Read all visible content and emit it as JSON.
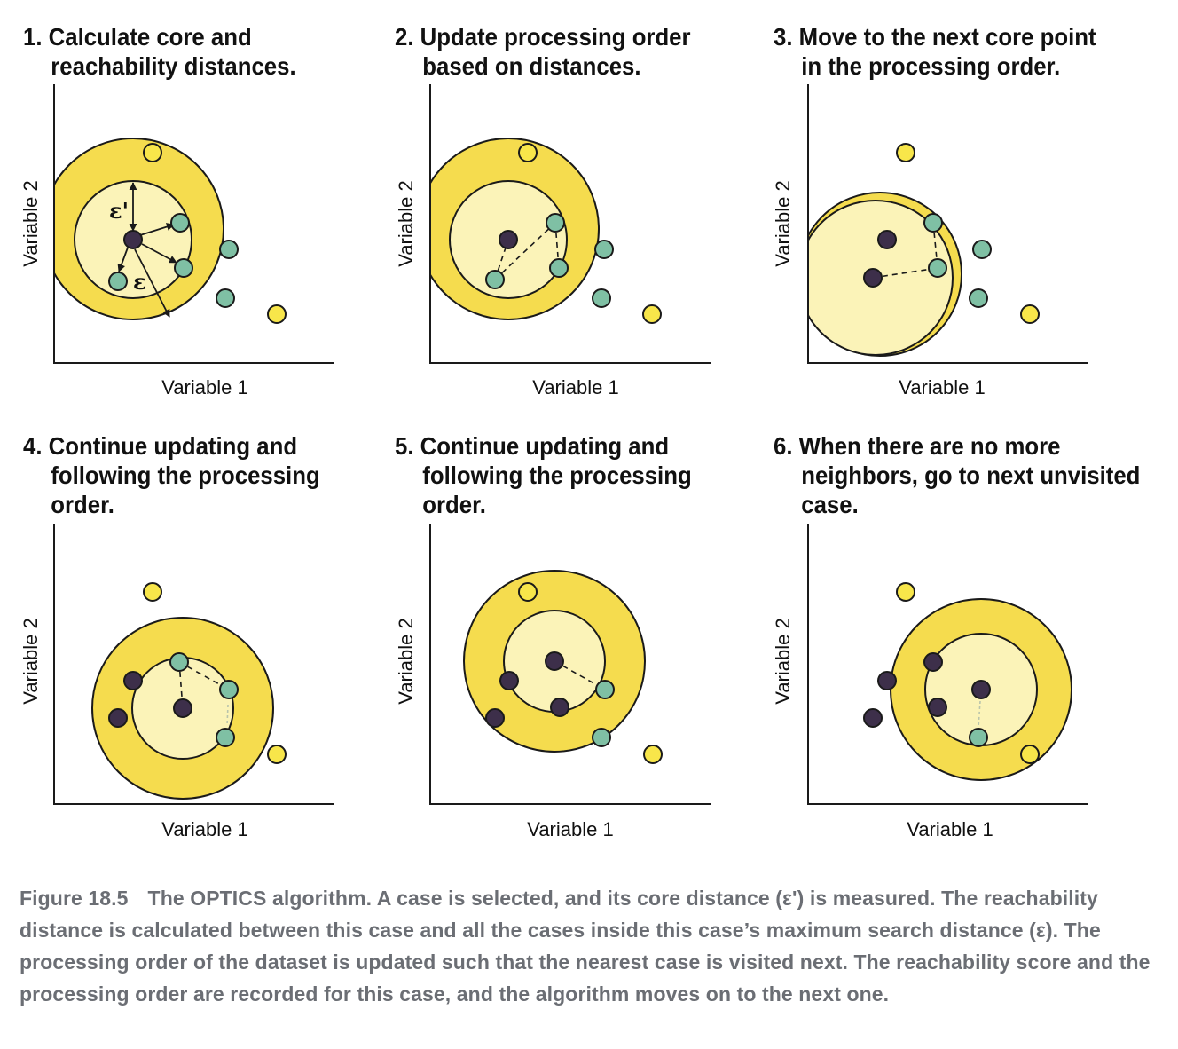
{
  "panels": [
    {
      "title_lines": [
        "1. Calculate core and",
        "reachability distances."
      ],
      "xlabel": "Variable 1",
      "ylabel": "Variable 2"
    },
    {
      "title_lines": [
        "2. Update processing order",
        "based on distances."
      ],
      "xlabel": "Variable 1",
      "ylabel": "Variable 2"
    },
    {
      "title_lines": [
        "3. Move to the next core point",
        "in the processing order."
      ],
      "xlabel": "Variable 1",
      "ylabel": "Variable 2"
    },
    {
      "title_lines": [
        "4. Continue updating and",
        "following the processing",
        "order."
      ],
      "xlabel": "Variable 1",
      "ylabel": "Variable 2"
    },
    {
      "title_lines": [
        "5. Continue updating and",
        "following the processing",
        "order."
      ],
      "xlabel": "Variable 1",
      "ylabel": "Variable 2"
    },
    {
      "title_lines": [
        "6. When there are no more",
        "neighbors, go to next unvisited",
        "case."
      ],
      "xlabel": "Variable 1",
      "ylabel": "Variable 2"
    }
  ],
  "annotations": {
    "core_distance_symbol": "ε'",
    "max_distance_symbol": "ε"
  },
  "caption": {
    "figure_label": "Figure 18.5",
    "text": "The OPTICS algorithm. A case is selected, and its core distance (ε') is measured. The reachability distance is calculated between this case and all the cases inside this case’s maximum search distance (ε). The processing order of the dataset is updated such that the nearest case is visited next. The reachability score and the processing order are recorded for this case, and the algorithm moves on to the next one."
  },
  "colors": {
    "outer_ring": "#f5dc4e",
    "inner_disc": "#fbf3b8",
    "core_point": "#3d2f4a",
    "neighbor_point": "#7fc0a4",
    "noise_point": "#f8e64a",
    "outline": "#1a1a1a"
  }
}
